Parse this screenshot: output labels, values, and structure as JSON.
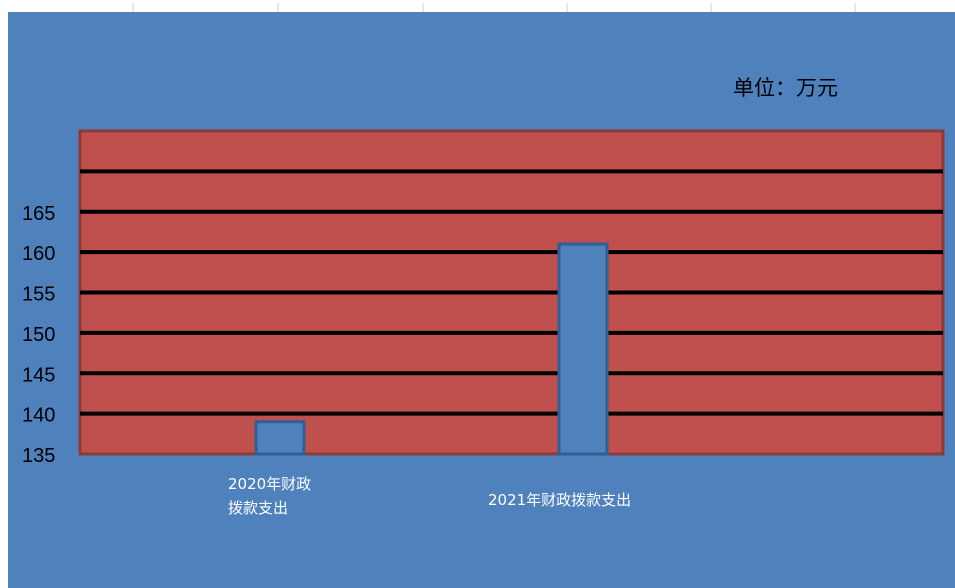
{
  "unit_label": "单位：万元",
  "colors": {
    "background": "#4f81bd",
    "plot_area": "#c0504d",
    "bars": "#4f81bd",
    "gridlines": "#000000"
  },
  "chart_data": {
    "type": "bar",
    "categories": [
      "2020年财政拨款支出",
      "2021年财政拨款支出"
    ],
    "category_labels": [
      "2020年财政\n拨款支出",
      "2021年财政拨款支出"
    ],
    "values": [
      139,
      161
    ],
    "yticks": [
      135,
      140,
      145,
      150,
      155,
      160,
      165
    ],
    "ylim": [
      135,
      175
    ],
    "grid": true,
    "legend": "none",
    "title": "",
    "xlabel": "",
    "ylabel": ""
  }
}
